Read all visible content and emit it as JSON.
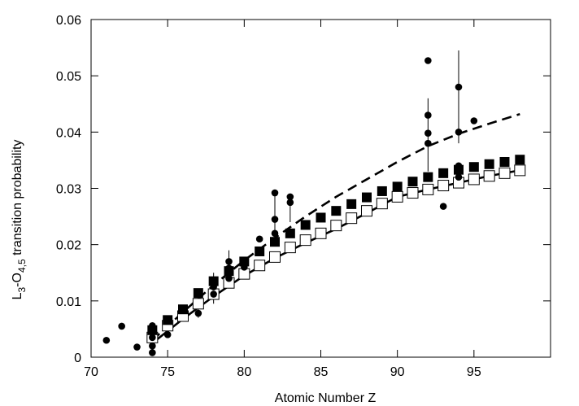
{
  "chart_data": {
    "type": "scatter",
    "title": "",
    "xlabel": "Atomic Number Z",
    "ylabel": {
      "base": "L",
      "sub1": "3",
      "mid": "-O",
      "sub2": "4,5",
      "rest": " transition probability"
    },
    "xlim": [
      70,
      100
    ],
    "ylim": [
      0,
      0.06
    ],
    "xticks": [
      70,
      75,
      80,
      85,
      90,
      95
    ],
    "yticks": [
      0,
      0.01,
      0.02,
      0.03,
      0.04,
      0.05,
      0.06
    ],
    "grid": false,
    "legend": "none",
    "series": [
      {
        "name": "",
        "kind": "line-solid",
        "color": "#000000",
        "x": [
          74,
          76,
          78,
          80,
          82,
          84,
          86,
          88,
          90,
          92,
          94,
          96,
          98
        ],
        "y": [
          0.0025,
          0.0068,
          0.0108,
          0.0145,
          0.0176,
          0.0203,
          0.0228,
          0.0256,
          0.0285,
          0.0298,
          0.031,
          0.0322,
          0.0332
        ]
      },
      {
        "name": "",
        "kind": "line-dashed",
        "color": "#000000",
        "x": [
          74,
          76,
          78,
          80,
          82,
          84,
          86,
          88,
          90,
          92,
          94,
          96,
          98
        ],
        "y": [
          0.003,
          0.008,
          0.0128,
          0.0172,
          0.0212,
          0.025,
          0.0285,
          0.0316,
          0.0347,
          0.0375,
          0.0397,
          0.0415,
          0.0432
        ]
      },
      {
        "name": "",
        "kind": "square-filled",
        "color": "#000000",
        "x": [
          74,
          75,
          76,
          77,
          78,
          79,
          80,
          81,
          82,
          83,
          84,
          85,
          86,
          87,
          88,
          89,
          90,
          91,
          92,
          93,
          94,
          95,
          96,
          97,
          98
        ],
        "y": [
          0.0048,
          0.0066,
          0.0085,
          0.0114,
          0.0135,
          0.0153,
          0.017,
          0.0188,
          0.0205,
          0.022,
          0.0235,
          0.0248,
          0.026,
          0.0272,
          0.0284,
          0.0295,
          0.0303,
          0.0312,
          0.032,
          0.0327,
          0.0333,
          0.0338,
          0.0343,
          0.0347,
          0.0351
        ]
      },
      {
        "name": "",
        "kind": "square-open",
        "color": "#000000",
        "x": [
          74,
          75,
          76,
          77,
          78,
          79,
          80,
          81,
          82,
          83,
          84,
          85,
          86,
          87,
          88,
          89,
          90,
          91,
          92,
          93,
          94,
          95,
          96,
          97,
          98
        ],
        "y": [
          0.0035,
          0.0056,
          0.0073,
          0.0095,
          0.0112,
          0.0132,
          0.0148,
          0.0163,
          0.0178,
          0.0195,
          0.0208,
          0.022,
          0.0234,
          0.0247,
          0.026,
          0.0273,
          0.0285,
          0.0292,
          0.0298,
          0.0305,
          0.031,
          0.0316,
          0.0322,
          0.0327,
          0.0332
        ]
      },
      {
        "name": "",
        "kind": "circle",
        "color": "#000000",
        "x": [
          71,
          72,
          73,
          74,
          74,
          74,
          74,
          74,
          75,
          77,
          78,
          78,
          79,
          79,
          79,
          80,
          80,
          81,
          82,
          82,
          82,
          83,
          83,
          92,
          92,
          92,
          92,
          92,
          93,
          94,
          94,
          94,
          94,
          94,
          95
        ],
        "y": [
          0.003,
          0.0055,
          0.0018,
          0.0056,
          0.0045,
          0.0035,
          0.002,
          0.0008,
          0.004,
          0.0078,
          0.0125,
          0.0112,
          0.017,
          0.0158,
          0.014,
          0.0172,
          0.016,
          0.021,
          0.0292,
          0.0245,
          0.022,
          0.0285,
          0.0275,
          0.0527,
          0.043,
          0.0398,
          0.038,
          0.032,
          0.0268,
          0.048,
          0.04,
          0.034,
          0.033,
          0.032,
          0.042
        ]
      }
    ],
    "error_bars": [
      {
        "x": 74,
        "y_low": 0.001,
        "y_high": 0.0058
      },
      {
        "x": 77,
        "y_low": 0.007,
        "y_high": 0.009
      },
      {
        "x": 78,
        "y_low": 0.0095,
        "y_high": 0.015
      },
      {
        "x": 79,
        "y_low": 0.0135,
        "y_high": 0.019
      },
      {
        "x": 82,
        "y_low": 0.021,
        "y_high": 0.0295
      },
      {
        "x": 83,
        "y_low": 0.024,
        "y_high": 0.029
      },
      {
        "x": 92,
        "y_low": 0.033,
        "y_high": 0.046
      },
      {
        "x": 94,
        "y_low": 0.038,
        "y_high": 0.0545
      }
    ]
  }
}
